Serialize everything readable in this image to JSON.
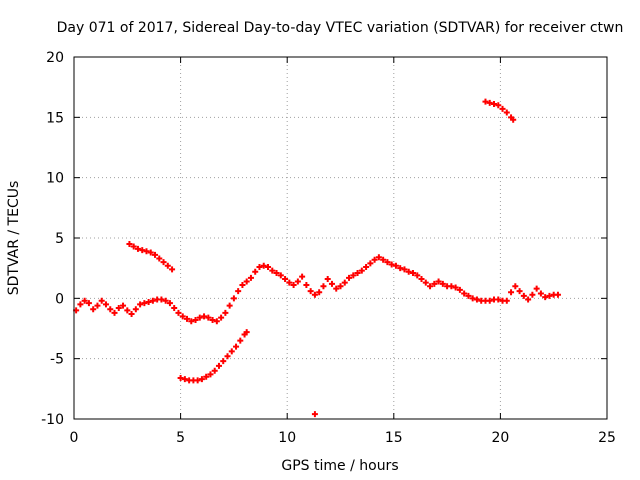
{
  "chart_data": {
    "type": "scatter",
    "title": "Day 071 of 2017, Sidereal Day-to-day VTEC variation (SDTVAR) for receiver ctwn",
    "xlabel": "GPS time / hours",
    "ylabel": "SDTVAR / TECUs",
    "xlim": [
      0,
      25
    ],
    "ylim": [
      -10,
      20
    ],
    "xticks": [
      0,
      5,
      10,
      15,
      20,
      25
    ],
    "yticks": [
      -10,
      -5,
      0,
      5,
      10,
      15,
      20
    ],
    "xtick_labels": [
      "0",
      "5",
      "10",
      "15",
      "20",
      "25"
    ],
    "ytick_labels": [
      "-10",
      "-5",
      "0",
      "5",
      "10",
      "15",
      "20"
    ],
    "grid": true,
    "marker": "+",
    "colors": {
      "points": "#ff0000",
      "grid": "#a0a0a0",
      "axes": "#000000"
    },
    "series": [
      {
        "name": "main-track",
        "points": [
          [
            0.1,
            -1.0
          ],
          [
            0.3,
            -0.5
          ],
          [
            0.5,
            -0.2
          ],
          [
            0.7,
            -0.4
          ],
          [
            0.9,
            -0.9
          ],
          [
            1.1,
            -0.6
          ],
          [
            1.3,
            -0.2
          ],
          [
            1.5,
            -0.5
          ],
          [
            1.7,
            -0.9
          ],
          [
            1.9,
            -1.2
          ],
          [
            2.1,
            -0.8
          ],
          [
            2.3,
            -0.6
          ],
          [
            2.5,
            -1.0
          ],
          [
            2.7,
            -1.3
          ],
          [
            2.9,
            -0.9
          ],
          [
            3.1,
            -0.5
          ],
          [
            3.3,
            -0.4
          ],
          [
            3.5,
            -0.3
          ],
          [
            3.7,
            -0.2
          ],
          [
            3.9,
            -0.1
          ],
          [
            4.1,
            -0.1
          ],
          [
            4.3,
            -0.2
          ],
          [
            4.5,
            -0.4
          ],
          [
            4.7,
            -0.8
          ],
          [
            4.9,
            -1.2
          ],
          [
            5.1,
            -1.5
          ],
          [
            5.3,
            -1.7
          ],
          [
            5.5,
            -1.9
          ],
          [
            5.7,
            -1.8
          ],
          [
            5.9,
            -1.6
          ],
          [
            6.1,
            -1.5
          ],
          [
            6.3,
            -1.6
          ],
          [
            6.5,
            -1.8
          ],
          [
            6.7,
            -1.9
          ],
          [
            6.9,
            -1.6
          ],
          [
            7.1,
            -1.2
          ],
          [
            7.3,
            -0.6
          ],
          [
            7.5,
            0.0
          ],
          [
            7.7,
            0.6
          ],
          [
            7.9,
            1.1
          ],
          [
            8.1,
            1.4
          ],
          [
            8.3,
            1.7
          ],
          [
            8.5,
            2.2
          ],
          [
            8.7,
            2.6
          ],
          [
            8.9,
            2.7
          ],
          [
            9.1,
            2.6
          ],
          [
            9.3,
            2.3
          ],
          [
            9.5,
            2.1
          ],
          [
            9.7,
            1.9
          ],
          [
            9.9,
            1.6
          ],
          [
            10.1,
            1.3
          ],
          [
            10.3,
            1.1
          ],
          [
            10.5,
            1.4
          ],
          [
            10.7,
            1.8
          ],
          [
            10.9,
            1.1
          ],
          [
            11.1,
            0.6
          ],
          [
            11.3,
            0.3
          ],
          [
            11.5,
            0.5
          ],
          [
            11.7,
            1.0
          ],
          [
            11.9,
            1.6
          ],
          [
            12.1,
            1.2
          ],
          [
            12.3,
            0.8
          ],
          [
            12.5,
            1.0
          ],
          [
            12.7,
            1.3
          ],
          [
            12.9,
            1.7
          ],
          [
            13.1,
            1.9
          ],
          [
            13.3,
            2.1
          ],
          [
            13.5,
            2.3
          ],
          [
            13.7,
            2.6
          ],
          [
            13.9,
            2.9
          ],
          [
            14.1,
            3.2
          ],
          [
            14.3,
            3.4
          ],
          [
            14.5,
            3.2
          ],
          [
            14.7,
            3.0
          ],
          [
            14.9,
            2.8
          ],
          [
            15.1,
            2.7
          ],
          [
            15.3,
            2.5
          ],
          [
            15.5,
            2.4
          ],
          [
            15.7,
            2.2
          ],
          [
            15.9,
            2.1
          ],
          [
            16.1,
            1.9
          ],
          [
            16.3,
            1.6
          ],
          [
            16.5,
            1.3
          ],
          [
            16.7,
            1.0
          ],
          [
            16.9,
            1.2
          ],
          [
            17.1,
            1.4
          ],
          [
            17.3,
            1.2
          ],
          [
            17.5,
            1.0
          ],
          [
            17.7,
            1.0
          ],
          [
            17.9,
            0.9
          ],
          [
            18.1,
            0.7
          ],
          [
            18.3,
            0.4
          ],
          [
            18.5,
            0.2
          ],
          [
            18.7,
            0.0
          ],
          [
            18.9,
            -0.1
          ],
          [
            19.1,
            -0.2
          ],
          [
            19.3,
            -0.2
          ],
          [
            19.5,
            -0.2
          ],
          [
            19.7,
            -0.1
          ],
          [
            19.9,
            -0.1
          ],
          [
            20.1,
            -0.2
          ],
          [
            20.3,
            -0.2
          ],
          [
            20.5,
            0.5
          ],
          [
            20.7,
            1.0
          ],
          [
            20.9,
            0.6
          ],
          [
            21.1,
            0.2
          ],
          [
            21.3,
            -0.1
          ],
          [
            21.5,
            0.3
          ],
          [
            21.7,
            0.8
          ],
          [
            21.9,
            0.4
          ],
          [
            22.1,
            0.1
          ],
          [
            22.3,
            0.2
          ],
          [
            22.5,
            0.3
          ],
          [
            22.7,
            0.3
          ]
        ]
      },
      {
        "name": "upper-arc-early",
        "points": [
          [
            2.6,
            4.5
          ],
          [
            2.8,
            4.3
          ],
          [
            3.0,
            4.1
          ],
          [
            3.2,
            4.0
          ],
          [
            3.4,
            3.9
          ],
          [
            3.6,
            3.8
          ],
          [
            3.8,
            3.6
          ],
          [
            4.0,
            3.3
          ],
          [
            4.2,
            3.0
          ],
          [
            4.4,
            2.7
          ],
          [
            4.6,
            2.4
          ]
        ]
      },
      {
        "name": "lower-arc",
        "points": [
          [
            5.0,
            -6.6
          ],
          [
            5.2,
            -6.7
          ],
          [
            5.4,
            -6.8
          ],
          [
            5.6,
            -6.8
          ],
          [
            5.8,
            -6.8
          ],
          [
            6.0,
            -6.7
          ],
          [
            6.2,
            -6.5
          ],
          [
            6.4,
            -6.3
          ],
          [
            6.6,
            -6.0
          ],
          [
            6.8,
            -5.6
          ],
          [
            7.0,
            -5.2
          ],
          [
            7.2,
            -4.8
          ],
          [
            7.4,
            -4.4
          ],
          [
            7.6,
            -4.0
          ],
          [
            7.8,
            -3.5
          ],
          [
            8.0,
            -3.0
          ],
          [
            8.1,
            -2.8
          ]
        ]
      },
      {
        "name": "upper-arc-late",
        "points": [
          [
            19.3,
            16.3
          ],
          [
            19.5,
            16.2
          ],
          [
            19.7,
            16.1
          ],
          [
            19.9,
            16.0
          ],
          [
            20.1,
            15.7
          ],
          [
            20.3,
            15.4
          ],
          [
            20.5,
            15.0
          ],
          [
            20.6,
            14.8
          ]
        ]
      },
      {
        "name": "outlier",
        "points": [
          [
            11.3,
            -9.6
          ]
        ]
      }
    ]
  }
}
